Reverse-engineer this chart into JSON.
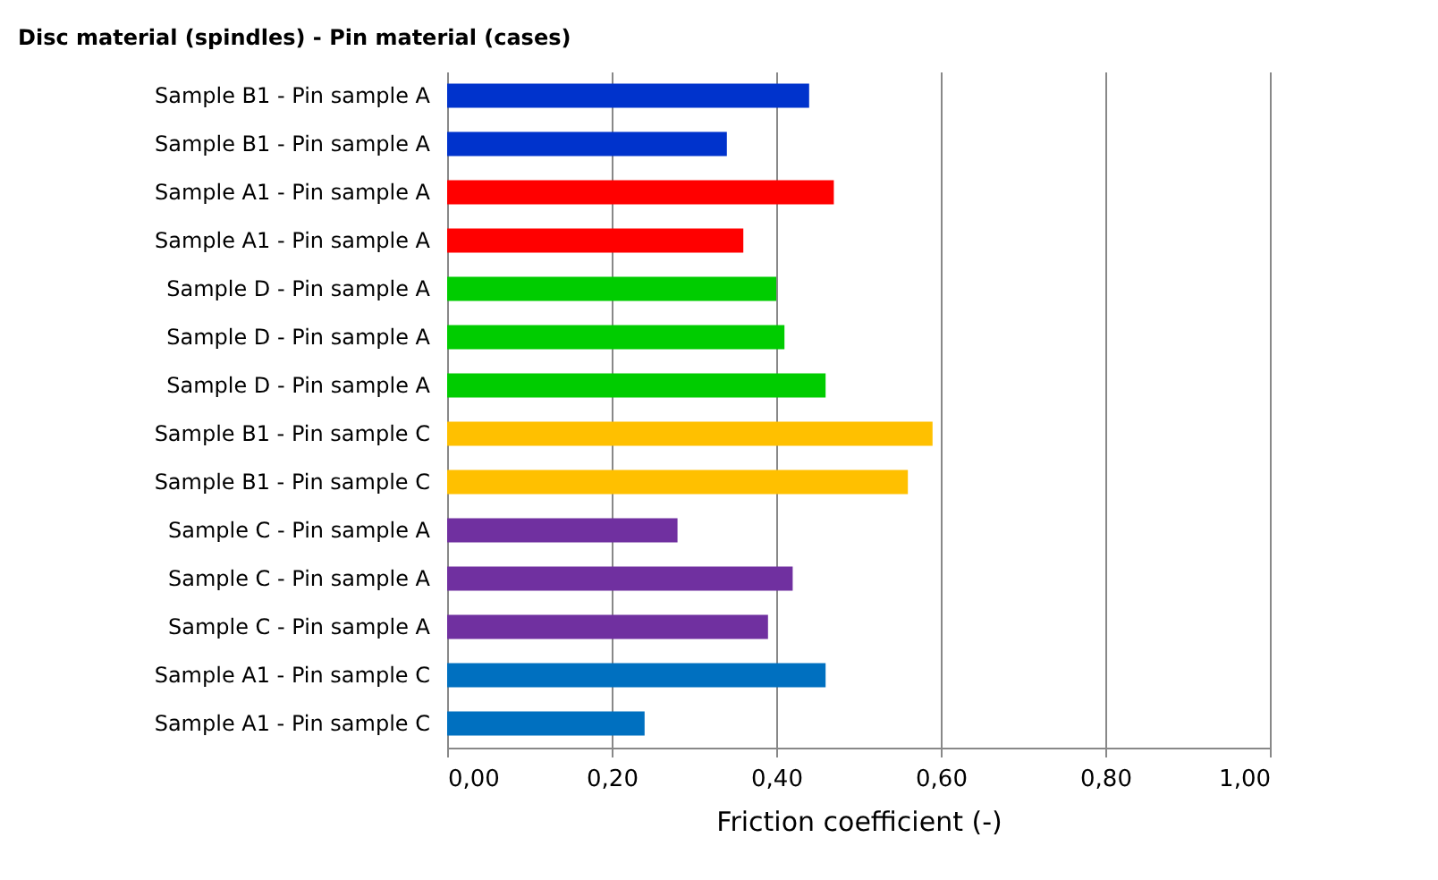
{
  "chart_data": {
    "type": "bar",
    "orientation": "horizontal",
    "title": "Disc material (spindles) - Pin material (cases)",
    "xlabel": "Friction coefficient (-)",
    "categories": [
      "Sample B1  - Pin sample A",
      "Sample B1  - Pin sample A",
      "Sample A1  - Pin sample A",
      "Sample A1  - Pin sample A",
      "Sample D  - Pin sample A",
      "Sample D  - Pin sample A",
      "Sample D  - Pin sample A",
      "Sample B1  - Pin sample C",
      "Sample B1  - Pin sample C",
      "Sample C  - Pin sample A",
      "Sample C  - Pin sample A",
      "Sample C  - Pin sample A",
      "Sample A1  - Pin sample C",
      "Sample A1  - Pin sample C"
    ],
    "values": [
      0.44,
      0.34,
      0.47,
      0.36,
      0.4,
      0.41,
      0.46,
      0.59,
      0.56,
      0.28,
      0.42,
      0.39,
      0.46,
      0.24
    ],
    "colors": [
      "#0033cc",
      "#0033cc",
      "#ff0000",
      "#ff0000",
      "#00cc00",
      "#00cc00",
      "#00cc00",
      "#ffc000",
      "#ffc000",
      "#7030a0",
      "#7030a0",
      "#7030a0",
      "#0070c0",
      "#0070c0"
    ],
    "xlim": [
      0,
      1
    ],
    "xticks": [
      {
        "value": 0,
        "label": "0,00"
      },
      {
        "value": 0.2,
        "label": "0,20"
      },
      {
        "value": 0.4,
        "label": "0,40"
      },
      {
        "value": 0.6,
        "label": "0,60"
      },
      {
        "value": 0.8,
        "label": "0,80"
      },
      {
        "value": 1,
        "label": "1,00"
      }
    ],
    "grid": "x"
  }
}
